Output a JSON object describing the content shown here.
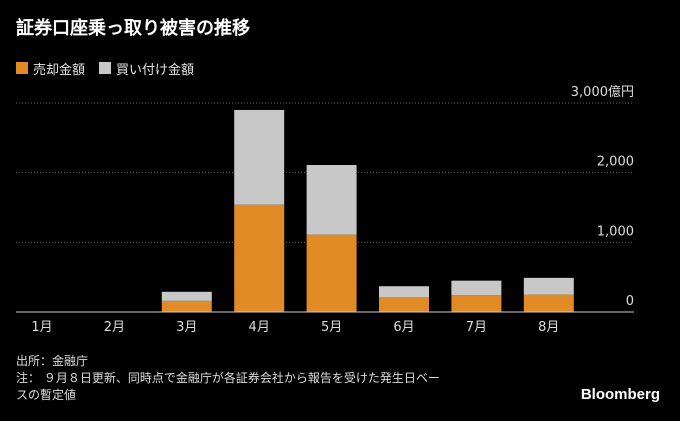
{
  "title": "証券口座乗っ取り被害の推移",
  "legend": [
    {
      "label": "売却金額",
      "color": "#e08b25"
    },
    {
      "label": "買い付け金額",
      "color": "#c8c8c8"
    }
  ],
  "chart_data": {
    "type": "bar",
    "stacked": true,
    "categories": [
      "1月",
      "2月",
      "3月",
      "4月",
      "5月",
      "6月",
      "7月",
      "8月"
    ],
    "series": [
      {
        "name": "売却金額",
        "color": "#e08b25",
        "values": [
          0,
          0,
          160,
          1540,
          1110,
          210,
          240,
          250
        ]
      },
      {
        "name": "買い付け金額",
        "color": "#c8c8c8",
        "values": [
          0,
          0,
          130,
          1360,
          1000,
          160,
          210,
          240
        ]
      }
    ],
    "ylim": [
      0,
      3000
    ],
    "yticks": [
      0,
      1000,
      2000,
      3000
    ],
    "ytick_labels": [
      "0",
      "1,000",
      "2,000",
      "3,000億円"
    ],
    "grid": true
  },
  "notes": [
    "出所：金融庁",
    "注： ９月８日更新、同時点で金融庁が各証券会社から報告を受けた発生日ベー",
    "スの暫定値"
  ],
  "brand": "Bloomberg"
}
